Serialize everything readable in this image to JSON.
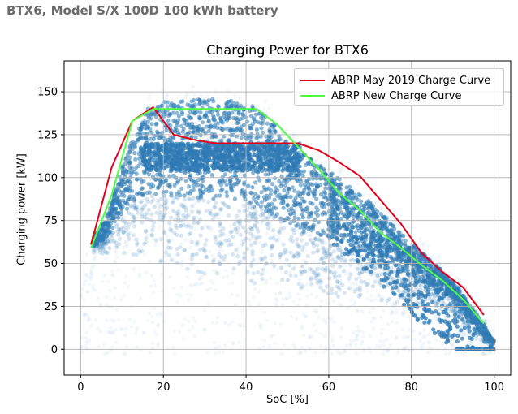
{
  "page": {
    "title": "BTX6, Model S/X 100D 100 kWh battery"
  },
  "colors": {
    "scatter": "#2f7bb5",
    "old_curve": "#e3001b",
    "new_curve": "#4cff40",
    "grid": "#b0b0b0"
  },
  "chart_data": {
    "type": "scatter",
    "title": "Charging Power for BTX6",
    "xlabel": "SoC [%]",
    "ylabel": "Charging power [kW]",
    "xlim": [
      -4,
      104
    ],
    "ylim": [
      -15,
      168
    ],
    "xticks": [
      0,
      20,
      40,
      60,
      80,
      100
    ],
    "yticks": [
      0,
      25,
      50,
      75,
      100,
      125,
      150
    ],
    "grid": true,
    "legend_position": "top-right",
    "series": [
      {
        "name": "ABRP May 2019 Charge Curve",
        "kind": "line",
        "color": "#e3001b",
        "x": [
          2.5,
          7.5,
          12.5,
          17.5,
          22.5,
          27.5,
          32.5,
          37.5,
          42.5,
          47.5,
          52.5,
          57.5,
          62.5,
          67.5,
          72.5,
          77.5,
          82.5,
          87.5,
          92.5,
          97.5
        ],
        "y": [
          61,
          106,
          133,
          141,
          125,
          122,
          120,
          120,
          120,
          120,
          120,
          116,
          109,
          101,
          87,
          73,
          56,
          45,
          36,
          20
        ]
      },
      {
        "name": "ABRP New Charge Curve",
        "kind": "line",
        "color": "#4cff40",
        "x": [
          2.5,
          7.5,
          12.5,
          17.5,
          22.5,
          27.5,
          32.5,
          37.5,
          42.5,
          47.5,
          52.5,
          57.5,
          62.5,
          67.5,
          72.5,
          77.5,
          82.5,
          87.5,
          92.5,
          97.5
        ],
        "y": [
          59,
          90,
          133,
          140,
          140,
          140,
          140,
          140,
          140,
          131,
          118,
          105,
          91,
          81,
          68,
          59,
          49,
          40,
          29,
          15
        ]
      }
    ],
    "scatter_cloud": {
      "description": "dense scatter of measured charging samples",
      "color": "#2f7bb5",
      "envelope_upper": [
        [
          2,
          62
        ],
        [
          6,
          75
        ],
        [
          10,
          106
        ],
        [
          12,
          120
        ],
        [
          16,
          140
        ],
        [
          20,
          144
        ],
        [
          30,
          146
        ],
        [
          40,
          144
        ],
        [
          46,
          135
        ],
        [
          50,
          120
        ],
        [
          60,
          104
        ],
        [
          70,
          86
        ],
        [
          80,
          62
        ],
        [
          90,
          40
        ],
        [
          96,
          20
        ],
        [
          100,
          5
        ]
      ],
      "envelope_lower": [
        [
          2,
          55
        ],
        [
          10,
          56
        ],
        [
          20,
          45
        ],
        [
          30,
          40
        ],
        [
          40,
          36
        ],
        [
          50,
          32
        ],
        [
          60,
          30
        ],
        [
          70,
          28
        ],
        [
          80,
          25
        ],
        [
          90,
          20
        ],
        [
          96,
          5
        ],
        [
          100,
          0
        ]
      ]
    }
  }
}
